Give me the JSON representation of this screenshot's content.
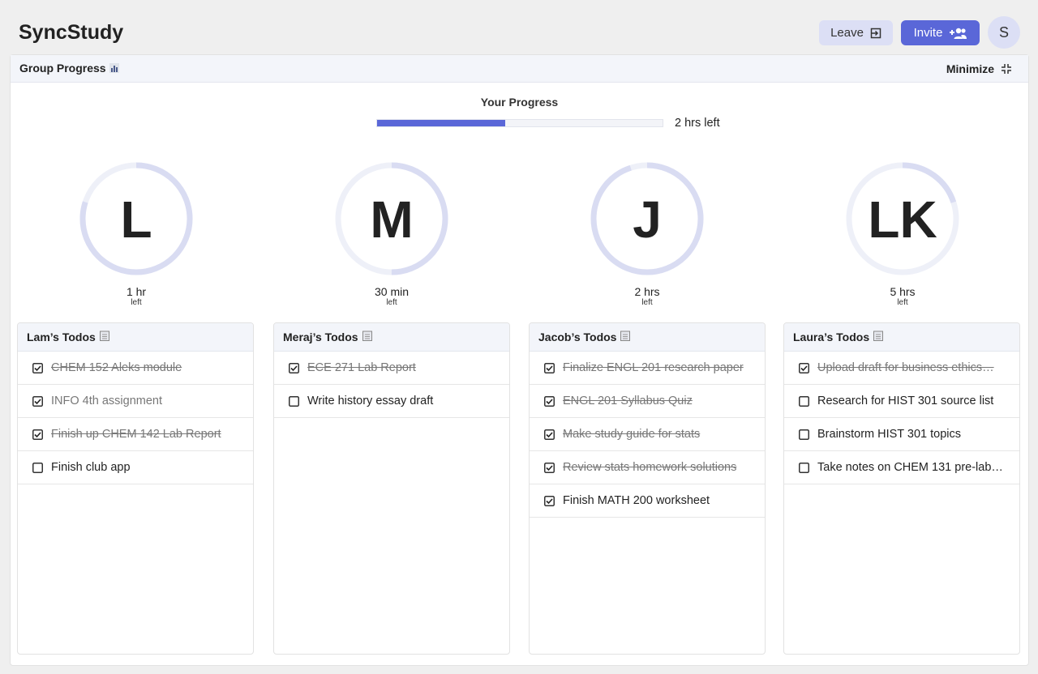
{
  "header": {
    "title": "SyncStudy",
    "leave": "Leave",
    "invite": "Invite",
    "avatar": "S"
  },
  "panel": {
    "title": "Group Progress",
    "minimize": "Minimize"
  },
  "your_progress": {
    "label": "Your Progress",
    "progress": 45,
    "remaining": "2 hrs left"
  },
  "members": [
    {
      "initials": "L",
      "progress": 80,
      "time": "1 hr",
      "unit": "left"
    },
    {
      "initials": "M",
      "progress": 50,
      "time": "30 min",
      "unit": "left"
    },
    {
      "initials": "J",
      "progress": 95,
      "time": "2 hrs",
      "unit": "left"
    },
    {
      "initials": "LK",
      "progress": 20,
      "time": "5 hrs",
      "unit": "left"
    }
  ],
  "todo_lists": [
    {
      "title": "Lam’s Todos",
      "items": [
        {
          "text": "CHEM 152 Aleks module",
          "checked": true,
          "struck": true
        },
        {
          "text": "INFO 4th assignment",
          "checked": true,
          "struck": false,
          "muted": true
        },
        {
          "text": "Finish up CHEM 142 Lab Report",
          "checked": true,
          "struck": true
        },
        {
          "text": "Finish club app",
          "checked": false,
          "struck": false
        }
      ]
    },
    {
      "title": "Meraj’s Todos",
      "items": [
        {
          "text": "ECE 271 Lab Report",
          "checked": true,
          "struck": true
        },
        {
          "text": "Write history essay draft",
          "checked": false,
          "struck": false
        }
      ]
    },
    {
      "title": "Jacob’s Todos",
      "items": [
        {
          "text": "Finalize ENGL 201 research paper",
          "checked": true,
          "struck": true
        },
        {
          "text": "ENGL 201 Syllabus Quiz",
          "checked": true,
          "struck": true
        },
        {
          "text": "Make study guide for stats",
          "checked": true,
          "struck": true
        },
        {
          "text": "Review stats homework solutions",
          "checked": true,
          "struck": true
        },
        {
          "text": "Finish MATH 200 worksheet",
          "checked": true,
          "struck": false
        }
      ]
    },
    {
      "title": "Laura’s Todos",
      "items": [
        {
          "text": "Upload draft for business ethics…",
          "checked": true,
          "struck": true
        },
        {
          "text": "Research for HIST 301 source list",
          "checked": false,
          "struck": false
        },
        {
          "text": "Brainstorm HIST 301 topics",
          "checked": false,
          "struck": false
        },
        {
          "text": "Take notes on CHEM 131 pre-lab…",
          "checked": false,
          "struck": false
        }
      ]
    }
  ]
}
